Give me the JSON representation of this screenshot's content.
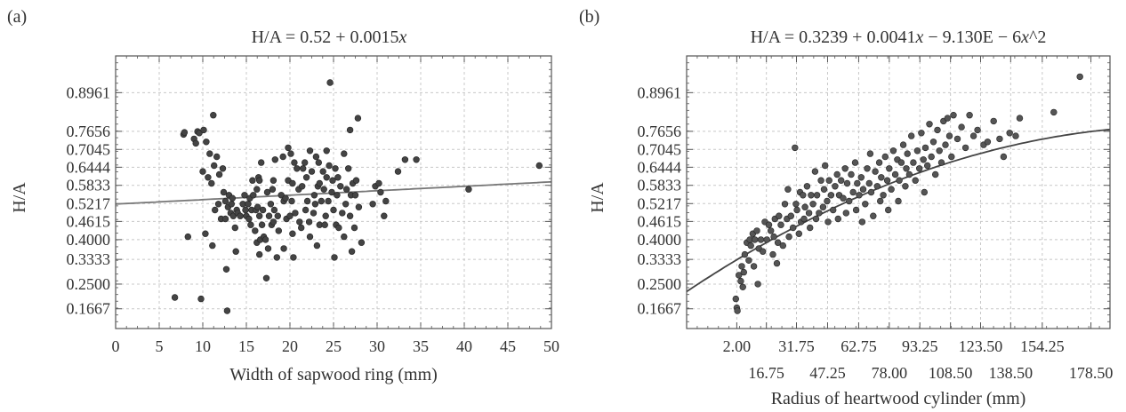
{
  "chart_data": [
    {
      "panel_label": "(a)",
      "type": "scatter",
      "title_html": "H/A = 0.52 + 0.0015<tspan font-style=\"italic\">x</tspan>",
      "xlabel": "Width of sapwood ring (mm)",
      "ylabel": "H/A",
      "xlim": [
        0,
        50
      ],
      "ylim": [
        0.1,
        1.02
      ],
      "x_ticks": [
        "0",
        "5",
        "10",
        "15",
        "20",
        "25",
        "30",
        "35",
        "40",
        "45",
        "50"
      ],
      "y_ticks": [
        "0.1667",
        "0.2500",
        "0.3333",
        "0.4000",
        "0.4615",
        "0.5217",
        "0.5833",
        "0.6444",
        "0.7045",
        "0.7656",
        "0.8961"
      ],
      "grid": true,
      "fit_line": {
        "type": "linear",
        "intercept": 0.52,
        "slope": 0.0015,
        "color": "#777777"
      },
      "point_color": "#444444",
      "points": [
        [
          6.8,
          0.205
        ],
        [
          7.8,
          0.755
        ],
        [
          7.9,
          0.762
        ],
        [
          8.3,
          0.41
        ],
        [
          9,
          0.74
        ],
        [
          9.2,
          0.725
        ],
        [
          9.4,
          0.765
        ],
        [
          9.6,
          0.76
        ],
        [
          9.8,
          0.2
        ],
        [
          10,
          0.63
        ],
        [
          10.1,
          0.77
        ],
        [
          10.3,
          0.42
        ],
        [
          10.4,
          0.73
        ],
        [
          10.6,
          0.61
        ],
        [
          10.8,
          0.69
        ],
        [
          11,
          0.59
        ],
        [
          11.1,
          0.38
        ],
        [
          11.2,
          0.82
        ],
        [
          11.3,
          0.65
        ],
        [
          11.4,
          0.5
        ],
        [
          11.6,
          0.68
        ],
        [
          11.8,
          0.52
        ],
        [
          11.9,
          0.62
        ],
        [
          12.1,
          0.47
        ],
        [
          12.3,
          0.64
        ],
        [
          12.4,
          0.56
        ],
        [
          12.6,
          0.53
        ],
        [
          12.6,
          0.47
        ],
        [
          12.7,
          0.3
        ],
        [
          12.8,
          0.16
        ],
        [
          12.9,
          0.51
        ],
        [
          13,
          0.55
        ],
        [
          13.2,
          0.49
        ],
        [
          13.3,
          0.52
        ],
        [
          13.4,
          0.54
        ],
        [
          13.5,
          0.48
        ],
        [
          13.7,
          0.44
        ],
        [
          13.8,
          0.36
        ],
        [
          13.9,
          0.5
        ],
        [
          14,
          0.49
        ],
        [
          14.3,
          0.48
        ],
        [
          14.6,
          0.52
        ],
        [
          14.8,
          0.55
        ],
        [
          14.9,
          0.5
        ],
        [
          15,
          0.48
        ],
        [
          15.2,
          0.52
        ],
        [
          15.3,
          0.47
        ],
        [
          15.4,
          0.54
        ],
        [
          15.5,
          0.45
        ],
        [
          15.6,
          0.5
        ],
        [
          15.7,
          0.6
        ],
        [
          15.8,
          0.55
        ],
        [
          16,
          0.43
        ],
        [
          16.1,
          0.5
        ],
        [
          16.2,
          0.57
        ],
        [
          16.2,
          0.39
        ],
        [
          16.3,
          0.51
        ],
        [
          16.4,
          0.61
        ],
        [
          16.5,
          0.35
        ],
        [
          16.5,
          0.48
        ],
        [
          16.5,
          0.6
        ],
        [
          16.6,
          0.4
        ],
        [
          16.7,
          0.66
        ],
        [
          16.8,
          0.45
        ],
        [
          16.9,
          0.5
        ],
        [
          17,
          0.41
        ],
        [
          17.2,
          0.4
        ],
        [
          17.3,
          0.27
        ],
        [
          17.4,
          0.56
        ],
        [
          17.5,
          0.37
        ],
        [
          17.6,
          0.48
        ],
        [
          17.8,
          0.52
        ],
        [
          17.9,
          0.45
        ],
        [
          18,
          0.57
        ],
        [
          18.1,
          0.46
        ],
        [
          18.1,
          0.6
        ],
        [
          18.2,
          0.5
        ],
        [
          18.3,
          0.67
        ],
        [
          18.5,
          0.34
        ],
        [
          18.6,
          0.48
        ],
        [
          18.7,
          0.43
        ],
        [
          19,
          0.55
        ],
        [
          19.2,
          0.68
        ],
        [
          19.3,
          0.37
        ],
        [
          19.3,
          0.53
        ],
        [
          19.5,
          0.54
        ],
        [
          19.6,
          0.47
        ],
        [
          19.8,
          0.6
        ],
        [
          19.8,
          0.71
        ],
        [
          20,
          0.48
        ],
        [
          20.1,
          0.69
        ],
        [
          20.2,
          0.53
        ],
        [
          20.3,
          0.42
        ],
        [
          20.3,
          0.59
        ],
        [
          20.4,
          0.34
        ],
        [
          20.5,
          0.66
        ],
        [
          20.6,
          0.49
        ],
        [
          20.8,
          0.64
        ],
        [
          21,
          0.57
        ],
        [
          21.1,
          0.46
        ],
        [
          21.3,
          0.44
        ],
        [
          21.4,
          0.58
        ],
        [
          21.5,
          0.64
        ],
        [
          21.7,
          0.66
        ],
        [
          21.8,
          0.5
        ],
        [
          21.9,
          0.61
        ],
        [
          22,
          0.53
        ],
        [
          22.2,
          0.46
        ],
        [
          22.3,
          0.7
        ],
        [
          22.3,
          0.41
        ],
        [
          22.5,
          0.63
        ],
        [
          22.7,
          0.49
        ],
        [
          22.8,
          0.55
        ],
        [
          22.9,
          0.52
        ],
        [
          23,
          0.68
        ],
        [
          23.1,
          0.38
        ],
        [
          23.2,
          0.58
        ],
        [
          23.3,
          0.66
        ],
        [
          23.4,
          0.59
        ],
        [
          23.4,
          0.45
        ],
        [
          23.6,
          0.53
        ],
        [
          23.8,
          0.63
        ],
        [
          23.9,
          0.57
        ],
        [
          24,
          0.45
        ],
        [
          24.1,
          0.48
        ],
        [
          24.2,
          0.7
        ],
        [
          24.2,
          0.61
        ],
        [
          24.4,
          0.53
        ],
        [
          24.5,
          0.65
        ],
        [
          24.6,
          0.93
        ],
        [
          24.8,
          0.56
        ],
        [
          24.9,
          0.6
        ],
        [
          25,
          0.5
        ],
        [
          25.1,
          0.34
        ],
        [
          25.2,
          0.64
        ],
        [
          25.3,
          0.45
        ],
        [
          25.4,
          0.55
        ],
        [
          25.5,
          0.61
        ],
        [
          25.6,
          0.44
        ],
        [
          25.8,
          0.58
        ],
        [
          26,
          0.49
        ],
        [
          26.2,
          0.41
        ],
        [
          26.2,
          0.69
        ],
        [
          26.4,
          0.52
        ],
        [
          26.5,
          0.57
        ],
        [
          26.7,
          0.64
        ],
        [
          26.9,
          0.48
        ],
        [
          26.9,
          0.77
        ],
        [
          27,
          0.55
        ],
        [
          27.1,
          0.36
        ],
        [
          27.2,
          0.59
        ],
        [
          27.4,
          0.44
        ],
        [
          27.5,
          0.55
        ],
        [
          27.6,
          0.6
        ],
        [
          27.8,
          0.81
        ],
        [
          27.9,
          0.51
        ],
        [
          28.2,
          0.39
        ],
        [
          29.5,
          0.52
        ],
        [
          29.8,
          0.58
        ],
        [
          30.2,
          0.59
        ],
        [
          30.4,
          0.56
        ],
        [
          30.8,
          0.48
        ],
        [
          31,
          0.53
        ],
        [
          32.4,
          0.63
        ],
        [
          33.2,
          0.67
        ],
        [
          34.5,
          0.67
        ],
        [
          40.5,
          0.57
        ],
        [
          48.6,
          0.65
        ]
      ]
    },
    {
      "panel_label": "(b)",
      "type": "scatter",
      "title_html": "H/A = 0.3239 + 0.0041<tspan font-style=\"italic\">x</tspan> − 9.130E − 6<tspan font-style=\"italic\">x</tspan>^2",
      "xlabel": "Radius of heartwood cylinder (mm)",
      "ylabel": "H/A",
      "xlim": [
        -23,
        188
      ],
      "ylim": [
        0.1,
        1.02
      ],
      "x_ticks_row1": [
        "2.00",
        "31.75",
        "62.75",
        "93.25",
        "123.50",
        "154.25"
      ],
      "x_ticks_row2": [
        "16.75",
        "47.25",
        "78.00",
        "108.50",
        "138.50",
        "178.50"
      ],
      "y_ticks": [
        "0.1667",
        "0.2500",
        "0.3333",
        "0.4000",
        "0.4615",
        "0.5217",
        "0.5833",
        "0.6444",
        "0.7045",
        "0.7656",
        "0.8961"
      ],
      "grid": true,
      "fit_line": {
        "type": "quadratic",
        "c0": 0.3239,
        "c1": 0.0041,
        "c2": -9.13e-06,
        "color": "#444444"
      },
      "point_color": "#555555",
      "points": [
        [
          1.5,
          0.2
        ],
        [
          2,
          0.17
        ],
        [
          2.3,
          0.16
        ],
        [
          3,
          0.28
        ],
        [
          4,
          0.26
        ],
        [
          4.5,
          0.31
        ],
        [
          5,
          0.24
        ],
        [
          5.5,
          0.29
        ],
        [
          6,
          0.35
        ],
        [
          7,
          0.39
        ],
        [
          8,
          0.33
        ],
        [
          8.5,
          0.4
        ],
        [
          9,
          0.38
        ],
        [
          10,
          0.42
        ],
        [
          10.5,
          0.31
        ],
        [
          11,
          0.4
        ],
        [
          12,
          0.43
        ],
        [
          12.5,
          0.25
        ],
        [
          13,
          0.37
        ],
        [
          14,
          0.4
        ],
        [
          15,
          0.36
        ],
        [
          16,
          0.46
        ],
        [
          17,
          0.4
        ],
        [
          18,
          0.45
        ],
        [
          19,
          0.43
        ],
        [
          20,
          0.35
        ],
        [
          20.5,
          0.41
        ],
        [
          21,
          0.47
        ],
        [
          22,
          0.32
        ],
        [
          22.5,
          0.39
        ],
        [
          23,
          0.48
        ],
        [
          24,
          0.45
        ],
        [
          25,
          0.38
        ],
        [
          26,
          0.52
        ],
        [
          27,
          0.47
        ],
        [
          27.5,
          0.57
        ],
        [
          28,
          0.41
        ],
        [
          29,
          0.48
        ],
        [
          30,
          0.44
        ],
        [
          31,
          0.71
        ],
        [
          31.5,
          0.52
        ],
        [
          32,
          0.5
        ],
        [
          33,
          0.42
        ],
        [
          33.5,
          0.56
        ],
        [
          34,
          0.46
        ],
        [
          35,
          0.55
        ],
        [
          35.5,
          0.47
        ],
        [
          36,
          0.51
        ],
        [
          37,
          0.58
        ],
        [
          38,
          0.49
        ],
        [
          38.5,
          0.44
        ],
        [
          39,
          0.55
        ],
        [
          40,
          0.52
        ],
        [
          41,
          0.63
        ],
        [
          41.5,
          0.47
        ],
        [
          42,
          0.55
        ],
        [
          43,
          0.49
        ],
        [
          44,
          0.6
        ],
        [
          45,
          0.51
        ],
        [
          45.5,
          0.57
        ],
        [
          46,
          0.65
        ],
        [
          47,
          0.53
        ],
        [
          47.5,
          0.46
        ],
        [
          48,
          0.6
        ],
        [
          49,
          0.55
        ],
        [
          50,
          0.5
        ],
        [
          51,
          0.58
        ],
        [
          52,
          0.62
        ],
        [
          52.5,
          0.47
        ],
        [
          53,
          0.55
        ],
        [
          54,
          0.6
        ],
        [
          55,
          0.54
        ],
        [
          56,
          0.64
        ],
        [
          56.5,
          0.49
        ],
        [
          57,
          0.59
        ],
        [
          58,
          0.53
        ],
        [
          59,
          0.62
        ],
        [
          60,
          0.56
        ],
        [
          61,
          0.66
        ],
        [
          61.5,
          0.5
        ],
        [
          62,
          0.59
        ],
        [
          63,
          0.55
        ],
        [
          64,
          0.61
        ],
        [
          64.5,
          0.46
        ],
        [
          65,
          0.57
        ],
        [
          66,
          0.52
        ],
        [
          67,
          0.64
        ],
        [
          68,
          0.59
        ],
        [
          68.5,
          0.69
        ],
        [
          69,
          0.56
        ],
        [
          70,
          0.48
        ],
        [
          71,
          0.63
        ],
        [
          72,
          0.58
        ],
        [
          73,
          0.66
        ],
        [
          73.5,
          0.53
        ],
        [
          74,
          0.61
        ],
        [
          75,
          0.55
        ],
        [
          76,
          0.68
        ],
        [
          77,
          0.6
        ],
        [
          77.5,
          0.5
        ],
        [
          78,
          0.64
        ],
        [
          79,
          0.57
        ],
        [
          80,
          0.7
        ],
        [
          81,
          0.62
        ],
        [
          82,
          0.67
        ],
        [
          82.5,
          0.53
        ],
        [
          83,
          0.6
        ],
        [
          84,
          0.66
        ],
        [
          85,
          0.72
        ],
        [
          86,
          0.58
        ],
        [
          86.5,
          0.64
        ],
        [
          87,
          0.69
        ],
        [
          88,
          0.62
        ],
        [
          89,
          0.75
        ],
        [
          90,
          0.66
        ],
        [
          91,
          0.6
        ],
        [
          92,
          0.7
        ],
        [
          93,
          0.64
        ],
        [
          94,
          0.76
        ],
        [
          95,
          0.67
        ],
        [
          95.5,
          0.56
        ],
        [
          96,
          0.71
        ],
        [
          97,
          0.65
        ],
        [
          98,
          0.79
        ],
        [
          99,
          0.68
        ],
        [
          100,
          0.73
        ],
        [
          101,
          0.62
        ],
        [
          102,
          0.77
        ],
        [
          103,
          0.7
        ],
        [
          104,
          0.66
        ],
        [
          105,
          0.8
        ],
        [
          106,
          0.72
        ],
        [
          107,
          0.81
        ],
        [
          108,
          0.75
        ],
        [
          109,
          0.68
        ],
        [
          110,
          0.82
        ],
        [
          112,
          0.74
        ],
        [
          114,
          0.78
        ],
        [
          116,
          0.71
        ],
        [
          118,
          0.82
        ],
        [
          120,
          0.75
        ],
        [
          122,
          0.77
        ],
        [
          125,
          0.72
        ],
        [
          127,
          0.73
        ],
        [
          130,
          0.8
        ],
        [
          133,
          0.74
        ],
        [
          135,
          0.68
        ],
        [
          138,
          0.76
        ],
        [
          141,
          0.75
        ],
        [
          143,
          0.81
        ],
        [
          160,
          0.83
        ],
        [
          173,
          0.95
        ]
      ]
    }
  ]
}
